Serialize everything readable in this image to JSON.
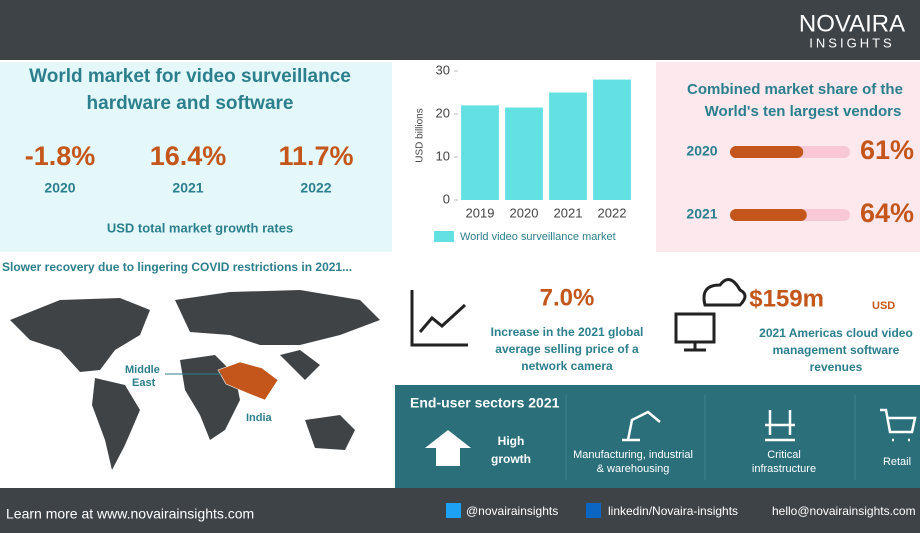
{
  "brand": {
    "name": "NOVAIRA",
    "sub": "INSIGHTS"
  },
  "growth": {
    "title_1": "World market for video surveillance",
    "title_2": "hardware and software",
    "stats": [
      {
        "value": "-1.8%",
        "year": "2020"
      },
      {
        "value": "16.4%",
        "year": "2021"
      },
      {
        "value": "11.7%",
        "year": "2022"
      }
    ],
    "caption": "USD total market growth rates"
  },
  "chart_data": {
    "type": "bar",
    "categories": [
      "2019",
      "2020",
      "2021",
      "2022"
    ],
    "values": [
      22,
      21.5,
      25,
      28
    ],
    "color": "#62e0e2",
    "ylim": [
      0,
      30
    ],
    "yticks": [
      0,
      10,
      20,
      30
    ],
    "ylabel": "USD billions",
    "legend": "World video surveillance market"
  },
  "share": {
    "type": "progress",
    "title_1": "Combined market share of the",
    "title_2": "World's ten largest vendors",
    "rows": [
      {
        "year": "2020",
        "value": 61,
        "value_label": "61%"
      },
      {
        "year": "2021",
        "value": 64,
        "value_label": "64%"
      }
    ],
    "max": 100,
    "color": "#c4561b",
    "track": "#f8c8d6"
  },
  "map": {
    "caption": "Slower recovery due to lingering COVID restrictions in 2021...",
    "label_1": "Middle",
    "label_2": "East",
    "label_3": "India"
  },
  "asp": {
    "value": "7.0%",
    "text_1": "Increase in the 2021 global",
    "text_2": "average selling price of a",
    "text_3": "network camera"
  },
  "cloud": {
    "value": "$159m",
    "unit": "USD",
    "text_1": "2021 Americas cloud video",
    "text_2": "management software",
    "text_3": "revenues"
  },
  "sectors": {
    "title": "End-user sectors 2021",
    "high_1": "High",
    "high_2": "growth",
    "items": [
      {
        "l1": "Manufacturing, industrial",
        "l2": "& warehousing"
      },
      {
        "l1": "Critical",
        "l2": "infrastructure"
      },
      {
        "l1": "Retail",
        "l2": null
      }
    ]
  },
  "footer": {
    "site": "Learn more at www.novairainsights.com",
    "twitter": "@novairainsights",
    "linkedin": "linkedin/Novaira-insights",
    "email": "hello@novairainsights.com"
  }
}
